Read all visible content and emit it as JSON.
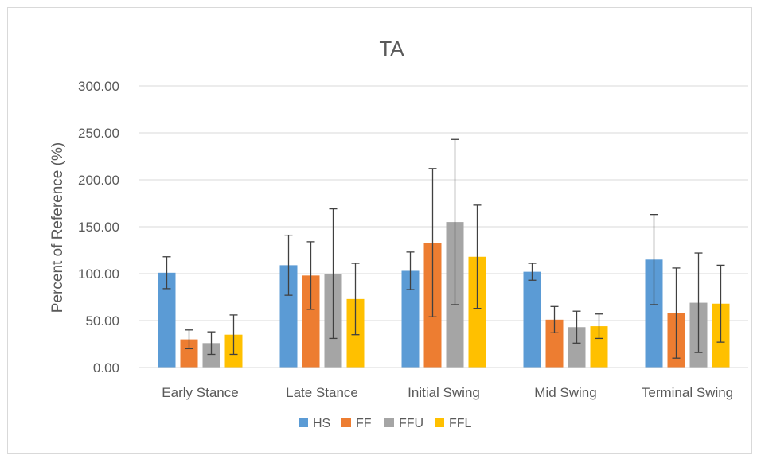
{
  "chart_data": {
    "type": "bar",
    "title": "TA",
    "xlabel": "",
    "ylabel": "Percent of Reference (%)",
    "ylim": [
      0,
      300
    ],
    "yticks": [
      "0.00",
      "50.00",
      "100.00",
      "150.00",
      "200.00",
      "250.00",
      "300.00"
    ],
    "grid": true,
    "legend_position": "bottom",
    "error_bars": true,
    "categories": [
      "Early Stance",
      "Late Stance",
      "Initial Swing",
      "Mid Swing",
      "Terminal Swing"
    ],
    "series": [
      {
        "name": "HS",
        "color": "#5b9bd5",
        "values": [
          101,
          109,
          103,
          102,
          115
        ],
        "errors": [
          17,
          32,
          20,
          9,
          48
        ]
      },
      {
        "name": "FF",
        "color": "#ed7d31",
        "values": [
          30,
          98,
          133,
          51,
          58
        ],
        "errors": [
          10,
          36,
          79,
          14,
          48
        ]
      },
      {
        "name": "FFU",
        "color": "#a5a5a5",
        "values": [
          26,
          100,
          155,
          43,
          69
        ],
        "errors": [
          12,
          69,
          88,
          17,
          53
        ]
      },
      {
        "name": "FFL",
        "color": "#ffc000",
        "values": [
          35,
          73,
          118,
          44,
          68
        ],
        "errors": [
          21,
          38,
          55,
          13,
          41
        ]
      }
    ]
  }
}
